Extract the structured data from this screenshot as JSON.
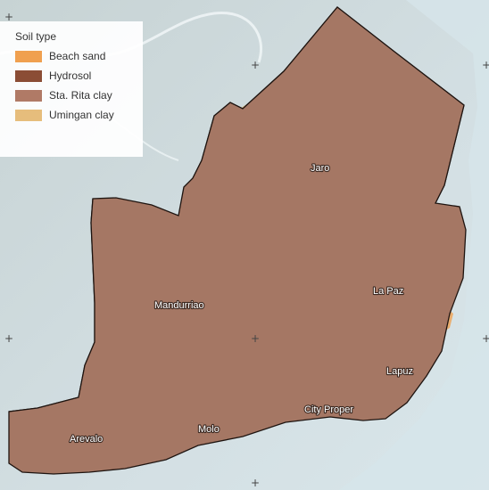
{
  "legend": {
    "title": "Soil type",
    "items": [
      {
        "label": "Beach sand",
        "color": "#f0a04f"
      },
      {
        "label": "Hydrosol",
        "color": "#8b4d35"
      },
      {
        "label": "Sta. Rita clay",
        "color": "#b07a66"
      },
      {
        "label": "Umingan clay",
        "color": "#e6bd7c"
      }
    ]
  },
  "districts": {
    "jaro": "Jaro",
    "la_paz": "La Paz",
    "mandurriao": "Mandurriao",
    "lapuz": "Lapuz",
    "city_proper": "City Proper",
    "molo": "Molo",
    "arevalo": "Arevalo"
  },
  "colors": {
    "sea": "#cfe0e5",
    "land_shaded": "#b9c8cb",
    "sta_rita_clay": "#a57764",
    "umingan_clay": "#e0bf88",
    "beach_sand": "#f0a04f",
    "hydrosol": "#8b4d35",
    "boundary": "#1e1410"
  }
}
